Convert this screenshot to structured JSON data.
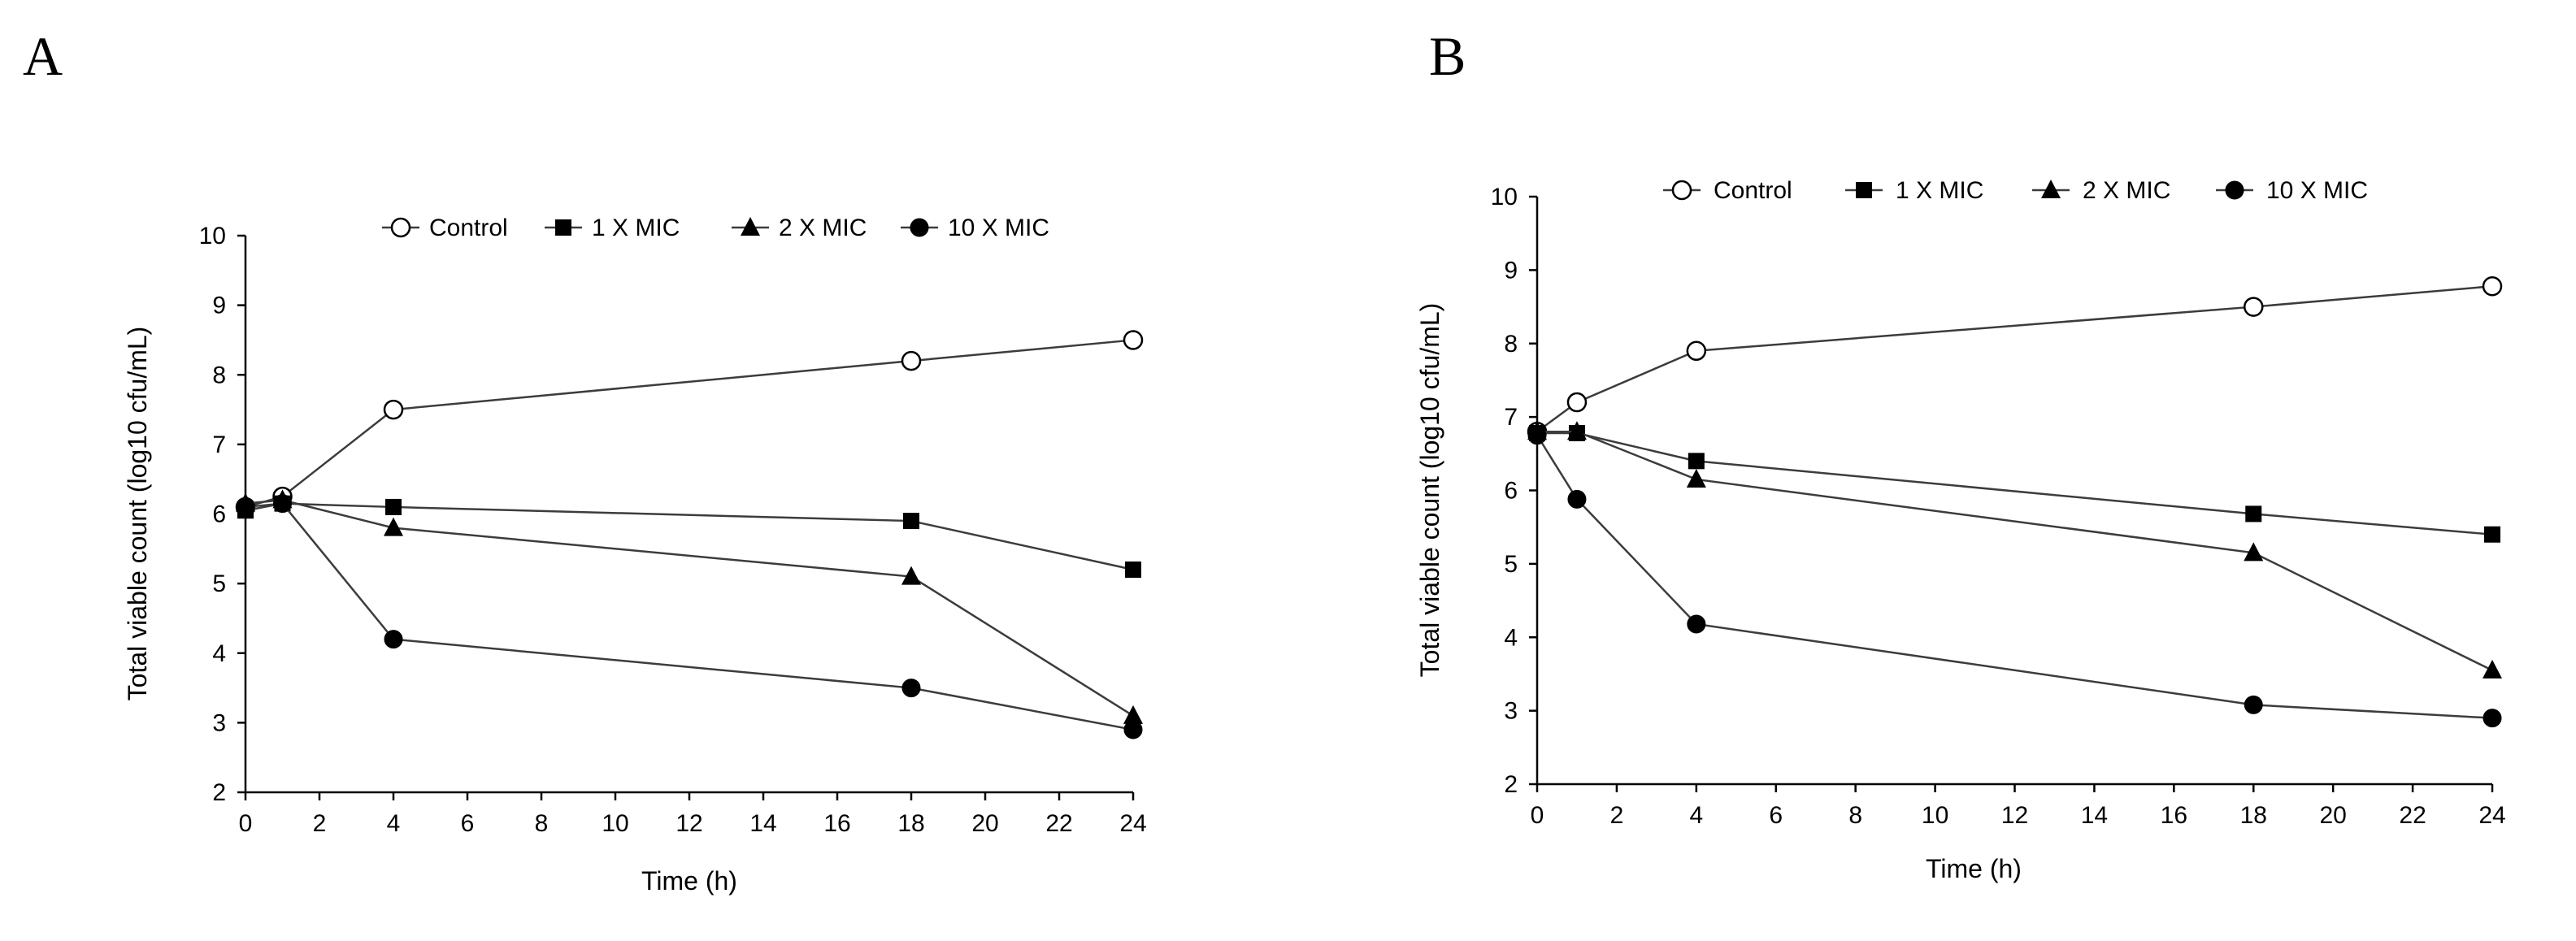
{
  "chart_data": [
    {
      "type": "line",
      "panel_label": "A",
      "xlabel": "Time (h)",
      "ylabel": "Total viable count (log10 cfu/mL)",
      "xlim": [
        0,
        24
      ],
      "ylim": [
        2,
        10
      ],
      "xticks": [
        0,
        2,
        4,
        6,
        8,
        10,
        12,
        14,
        16,
        18,
        20,
        22,
        24
      ],
      "yticks": [
        2,
        3,
        4,
        5,
        6,
        7,
        8,
        9,
        10
      ],
      "grid": false,
      "legend_position": "top",
      "series": [
        {
          "name": "Control",
          "marker": "circle-open",
          "x": [
            0,
            1,
            4,
            18,
            24
          ],
          "values": [
            6.1,
            6.25,
            7.5,
            8.2,
            8.5
          ]
        },
        {
          "name": "1 X MIC",
          "marker": "square",
          "x": [
            0,
            1,
            4,
            18,
            24
          ],
          "values": [
            6.05,
            6.15,
            6.1,
            5.9,
            5.2
          ]
        },
        {
          "name": "2 X MIC",
          "marker": "triangle",
          "x": [
            0,
            1,
            4,
            18,
            24
          ],
          "values": [
            6.15,
            6.2,
            5.8,
            5.1,
            3.1
          ]
        },
        {
          "name": "10 X MIC",
          "marker": "circle",
          "x": [
            0,
            1,
            4,
            18,
            24
          ],
          "values": [
            6.1,
            6.15,
            4.2,
            3.5,
            2.9
          ]
        }
      ]
    },
    {
      "type": "line",
      "panel_label": "B",
      "xlabel": "Time (h)",
      "ylabel": "Total viable count (log10 cfu/mL)",
      "xlim": [
        0,
        24
      ],
      "ylim": [
        2,
        10
      ],
      "xticks": [
        0,
        2,
        4,
        6,
        8,
        10,
        12,
        14,
        16,
        18,
        20,
        22,
        24
      ],
      "yticks": [
        2,
        3,
        4,
        5,
        6,
        7,
        8,
        9,
        10
      ],
      "grid": false,
      "legend_position": "top",
      "series": [
        {
          "name": "Control",
          "marker": "circle-open",
          "x": [
            0,
            1,
            4,
            18,
            24
          ],
          "values": [
            6.8,
            7.2,
            7.9,
            8.5,
            8.78
          ]
        },
        {
          "name": "1 X MIC",
          "marker": "square",
          "x": [
            0,
            1,
            4,
            18,
            24
          ],
          "values": [
            6.78,
            6.78,
            6.4,
            5.68,
            5.4
          ]
        },
        {
          "name": "2 X MIC",
          "marker": "triangle",
          "x": [
            0,
            1,
            4,
            18,
            24
          ],
          "values": [
            6.8,
            6.8,
            6.15,
            5.15,
            3.55
          ]
        },
        {
          "name": "10 X MIC",
          "marker": "circle",
          "x": [
            0,
            1,
            4,
            18,
            24
          ],
          "values": [
            6.75,
            5.88,
            4.18,
            3.08,
            2.9
          ]
        }
      ]
    }
  ]
}
